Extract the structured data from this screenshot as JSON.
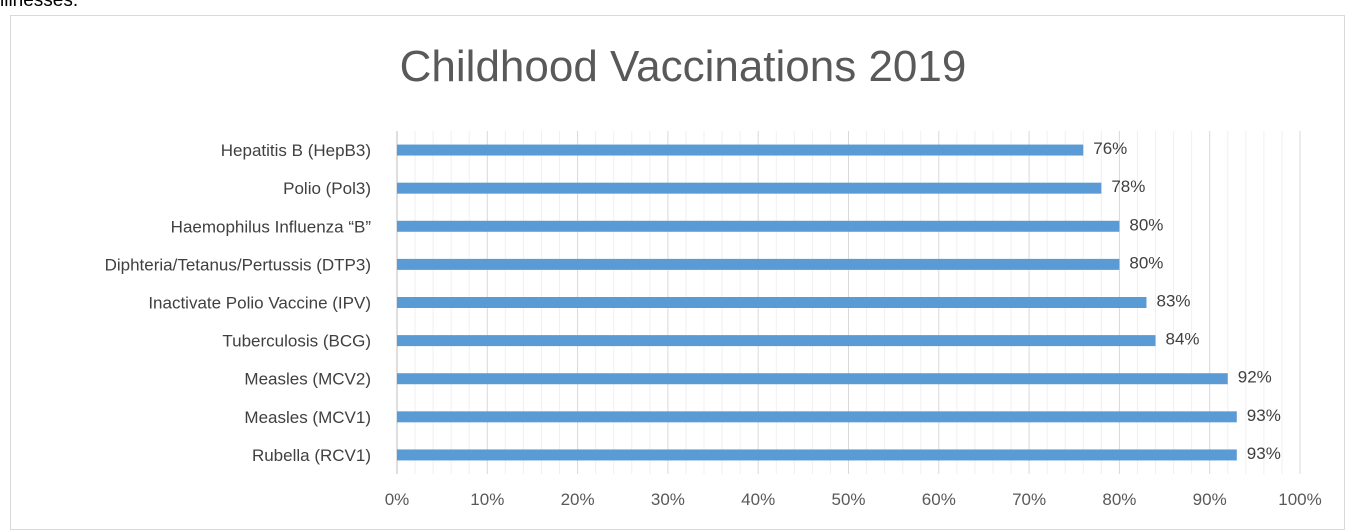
{
  "page_text": {
    "top_text": "illnesses."
  },
  "chart_data": {
    "type": "bar",
    "orientation": "horizontal",
    "title": "Childhood Vaccinations 2019",
    "categories": [
      "Hepatitis B (HepB3)",
      "Polio (Pol3)",
      "Haemophilus Influenza “B”",
      "Diphteria/Tetanus/Pertussis (DTP3)",
      "Inactivate Polio Vaccine (IPV)",
      "Tuberculosis (BCG)",
      "Measles (MCV2)",
      "Measles (MCV1)",
      "Rubella (RCV1)"
    ],
    "values": [
      76,
      78,
      80,
      80,
      83,
      84,
      92,
      93,
      93
    ],
    "data_labels": [
      "76%",
      "78%",
      "80%",
      "80%",
      "83%",
      "84%",
      "92%",
      "93%",
      "93%"
    ],
    "xlim": [
      0,
      100
    ],
    "x_ticks": [
      0,
      10,
      20,
      30,
      40,
      50,
      60,
      70,
      80,
      90,
      100
    ],
    "x_tick_labels": [
      "0%",
      "10%",
      "20%",
      "30%",
      "40%",
      "50%",
      "60%",
      "70%",
      "80%",
      "90%",
      "100%"
    ],
    "bar_color": "#5b9bd5",
    "grid": true,
    "legend": "none"
  }
}
